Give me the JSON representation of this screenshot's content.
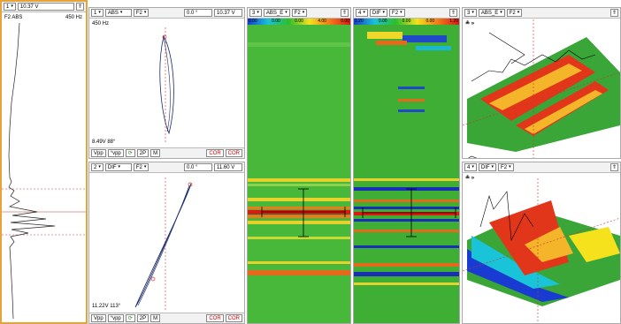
{
  "strip": {
    "ch": "1",
    "value": "10.37 V",
    "title": "F2 ABS",
    "freq": "450 Hz"
  },
  "p1": {
    "ch": "1",
    "mode": "ABS",
    "freq": "F2",
    "phase": "0.0 °",
    "span": "10.37 V",
    "freq_label": "450 Hz",
    "readout": "8.49V 88°"
  },
  "p2": {
    "ch": "2",
    "mode": "DIF",
    "freq": "F2",
    "phase": "0.0 °",
    "span": "11.60 V",
    "readout": "11.22V 113°"
  },
  "btns": {
    "vpp": "Vpp",
    "vpp2": "°vpp",
    "twop": "2P",
    "m": "M",
    "cor": "COR",
    "cor2": "COR"
  },
  "s3": {
    "ch": "3",
    "mode": "ABS_E",
    "freq": "F2",
    "scale": [
      "0.00",
      "0.00",
      "0.00",
      "4.00",
      "0.00"
    ]
  },
  "s4": {
    "ch": "4",
    "mode": "DIF",
    "freq": "F2",
    "scale": [
      "1.20",
      "0.00",
      "0.00",
      "0.00",
      "1.20"
    ]
  },
  "d1": {
    "ch": "3",
    "mode": "ABS_E",
    "freq": "F2"
  },
  "d2": {
    "ch": "4",
    "mode": "DIF",
    "freq": "F2"
  }
}
